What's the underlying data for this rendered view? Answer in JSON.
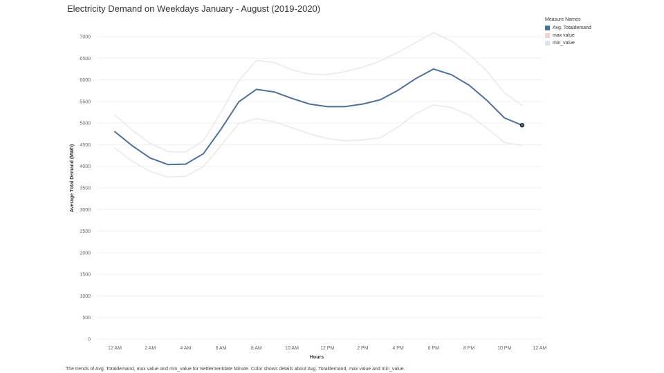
{
  "title": "Electricity Demand on Weekdays January - August (2019-2020)",
  "caption": "The trends of Avg. Totaldemand, max value and min_value for Settlementdate Minute.  Color shows details about Avg. Totaldemand, max value and min_value.",
  "legend": {
    "title": "Measure Names",
    "items": [
      {
        "label": "Avg. Totaldemand",
        "color": "#4e6f98"
      },
      {
        "label": "max value",
        "color": "#f2d3d3"
      },
      {
        "label": "min_value",
        "color": "#dde6e6"
      }
    ]
  },
  "chart_data": {
    "type": "line",
    "title": "Electricity Demand on Weekdays January - August (2019-2020)",
    "xlabel": "Hours",
    "ylabel": "Average Total Demand (MWh)",
    "ylim": [
      0,
      7000
    ],
    "yticks": [
      0,
      500,
      1000,
      1500,
      2000,
      2500,
      3000,
      3500,
      4000,
      4500,
      5000,
      5500,
      6000,
      6500,
      7000
    ],
    "xticks": [
      "12 AM",
      "2 AM",
      "4 AM",
      "6 AM",
      "8 AM",
      "10 AM",
      "12 PM",
      "2 PM",
      "4 PM",
      "6 PM",
      "8 PM",
      "10 PM",
      "12 AM"
    ],
    "x": [
      0,
      1,
      2,
      3,
      4,
      5,
      6,
      7,
      8,
      9,
      10,
      11,
      12,
      13,
      14,
      15,
      16,
      17,
      18,
      19,
      20,
      21,
      22,
      23
    ],
    "grid": "horizontal",
    "legend_position": "top-right",
    "series": [
      {
        "name": "max value",
        "color": "#ececec",
        "values": [
          5190,
          4830,
          4530,
          4340,
          4330,
          4590,
          5250,
          5980,
          6450,
          6400,
          6230,
          6130,
          6120,
          6190,
          6290,
          6440,
          6640,
          6860,
          7090,
          6900,
          6590,
          6210,
          5700,
          5410
        ]
      },
      {
        "name": "min_value",
        "color": "#ececec",
        "values": [
          4420,
          4110,
          3880,
          3750,
          3770,
          3990,
          4480,
          4990,
          5100,
          5030,
          4890,
          4750,
          4640,
          4590,
          4610,
          4660,
          4910,
          5220,
          5420,
          5360,
          5190,
          4890,
          4550,
          4480
        ]
      },
      {
        "name": "Avg. Totaldemand",
        "color": "#4e6f98",
        "values": [
          4800,
          4470,
          4190,
          4040,
          4050,
          4290,
          4860,
          5490,
          5780,
          5720,
          5570,
          5440,
          5380,
          5380,
          5440,
          5540,
          5760,
          6030,
          6250,
          6120,
          5880,
          5530,
          5120,
          4950
        ]
      }
    ]
  }
}
